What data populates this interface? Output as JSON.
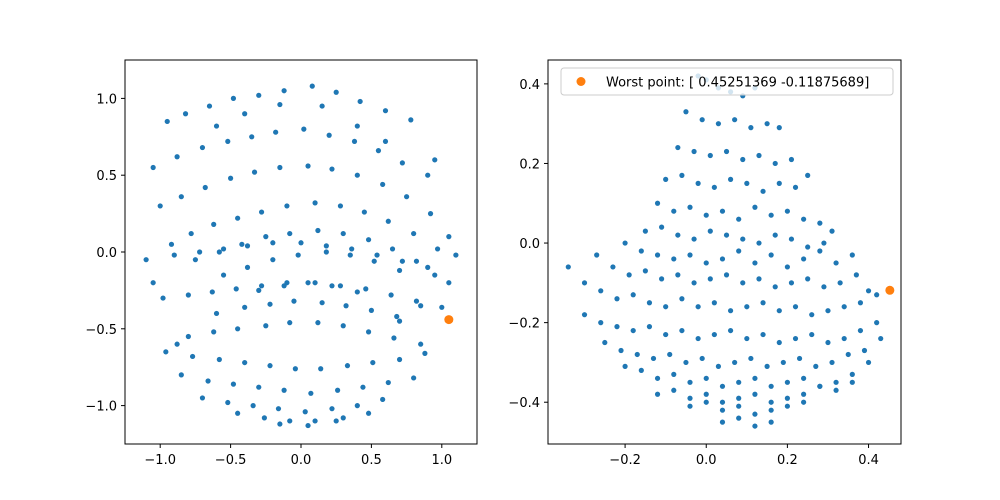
{
  "figure": {
    "background": "#ffffff"
  },
  "chart_data": [
    {
      "type": "scatter",
      "title": "",
      "xlabel": "",
      "ylabel": "",
      "xlim": [
        -1.25,
        1.25
      ],
      "ylim": [
        -1.25,
        1.25
      ],
      "xticks": [
        -1.0,
        -0.5,
        0.0,
        0.5,
        1.0
      ],
      "xtick_labels": [
        "−1.0",
        "−0.5",
        "0.0",
        "0.5",
        "1.0"
      ],
      "yticks": [
        -1.0,
        -0.5,
        0.0,
        0.5,
        1.0
      ],
      "ytick_labels": [
        "−1.0",
        "−0.5",
        "0.0",
        "0.5",
        "1.0"
      ],
      "grid": false,
      "series": [
        {
          "color": "#1f77b4",
          "shape": "small-dot",
          "x": [
            -0.95,
            -0.82,
            -0.65,
            -0.48,
            -0.3,
            -0.12,
            0.08,
            0.25,
            0.42,
            0.6,
            0.78,
            0.95,
            -1.05,
            -0.88,
            -0.7,
            -0.52,
            -0.35,
            -0.18,
            0.02,
            0.2,
            0.38,
            0.55,
            0.72,
            0.9,
            1.05,
            -1.0,
            -0.85,
            -0.68,
            -0.5,
            -0.33,
            -0.15,
            0.05,
            0.22,
            0.4,
            0.58,
            0.75,
            0.92,
            -0.92,
            -0.78,
            -0.62,
            -0.45,
            -0.28,
            -0.1,
            0.1,
            0.28,
            0.45,
            0.62,
            0.8,
            0.97,
            -0.75,
            -0.58,
            -0.42,
            -0.25,
            -0.08,
            0.12,
            0.3,
            0.48,
            0.65,
            0.82,
            -0.55,
            -0.38,
            -0.2,
            -0.02,
            0.18,
            0.35,
            0.52,
            0.7,
            -0.3,
            -0.12,
            0.05,
            0.22,
            0.4,
            -0.6,
            -0.4,
            -0.22,
            -0.05,
            0.15,
            0.32,
            0.5,
            0.68,
            -0.8,
            -0.62,
            -0.45,
            -0.25,
            -0.08,
            0.12,
            0.3,
            0.48,
            0.66,
            0.85,
            -0.98,
            -0.8,
            -0.63,
            -0.46,
            -0.28,
            -0.1,
            0.1,
            0.28,
            0.46,
            0.64,
            0.82,
            1.0,
            -1.1,
            -0.9,
            -0.72,
            -0.55,
            -0.38,
            -0.2,
            0.0,
            0.18,
            0.36,
            0.54,
            0.72,
            0.9,
            1.1,
            -0.96,
            -0.77,
            -0.58,
            -0.4,
            -0.22,
            -0.04,
            0.14,
            0.33,
            0.51,
            0.7,
            0.88,
            -0.85,
            -0.66,
            -0.48,
            -0.3,
            -0.12,
            0.07,
            0.26,
            0.44,
            0.62,
            0.8,
            -0.7,
            -0.52,
            -0.34,
            -0.16,
            0.03,
            0.22,
            0.4,
            0.58,
            -0.45,
            -0.26,
            -0.08,
            0.1,
            0.3,
            0.48,
            -0.15,
            0.05,
            0.25,
            0.95,
            1.05,
            0.85,
            0.7,
            -0.88,
            -1.05,
            0.6,
            -0.6,
            0.4,
            -0.4,
            0.15,
            -0.15
          ],
          "y": [
            0.85,
            0.9,
            0.95,
            1.0,
            1.02,
            1.05,
            1.08,
            1.04,
            0.98,
            0.92,
            0.86,
            0.6,
            0.55,
            0.62,
            0.68,
            0.72,
            0.75,
            0.78,
            0.8,
            0.76,
            0.72,
            0.66,
            0.58,
            0.5,
            0.1,
            0.3,
            0.36,
            0.42,
            0.48,
            0.52,
            0.55,
            0.56,
            0.54,
            0.5,
            0.44,
            0.36,
            0.25,
            0.05,
            0.12,
            0.18,
            0.22,
            0.26,
            0.3,
            0.32,
            0.3,
            0.26,
            0.2,
            0.12,
            0.02,
            -0.05,
            0.0,
            0.05,
            0.1,
            0.12,
            0.14,
            0.12,
            0.08,
            0.02,
            -0.06,
            -0.15,
            -0.1,
            -0.05,
            -0.02,
            0.0,
            -0.02,
            -0.06,
            -0.12,
            -0.25,
            -0.22,
            -0.2,
            -0.22,
            -0.26,
            -0.4,
            -0.36,
            -0.34,
            -0.32,
            -0.33,
            -0.35,
            -0.38,
            -0.42,
            -0.55,
            -0.52,
            -0.5,
            -0.48,
            -0.46,
            -0.46,
            -0.48,
            -0.52,
            -0.56,
            -0.6,
            -0.3,
            -0.28,
            -0.26,
            -0.24,
            -0.22,
            -0.2,
            -0.2,
            -0.22,
            -0.24,
            -0.28,
            -0.32,
            -0.36,
            -0.05,
            -0.02,
            0.0,
            0.02,
            0.04,
            0.06,
            0.06,
            0.04,
            0.02,
            -0.02,
            -0.06,
            -0.1,
            -0.02,
            -0.65,
            -0.68,
            -0.7,
            -0.72,
            -0.74,
            -0.76,
            -0.76,
            -0.74,
            -0.72,
            -0.7,
            -0.66,
            -0.8,
            -0.84,
            -0.86,
            -0.88,
            -0.9,
            -0.92,
            -0.9,
            -0.88,
            -0.85,
            -0.82,
            -0.95,
            -0.98,
            -1.0,
            -1.02,
            -1.04,
            -1.02,
            -1.0,
            -0.96,
            -1.05,
            -1.08,
            -1.1,
            -1.1,
            -1.08,
            -1.05,
            -1.12,
            -1.13,
            -1.1,
            -0.15,
            -0.2,
            -0.35,
            -0.45,
            -0.6,
            -0.2,
            0.72,
            0.82,
            0.82,
            0.9,
            0.95,
            0.96
          ]
        },
        {
          "color": "#ff7f0e",
          "shape": "large-dot",
          "x": [
            1.05
          ],
          "y": [
            -0.44
          ]
        }
      ]
    },
    {
      "type": "scatter",
      "title": "",
      "xlabel": "",
      "ylabel": "",
      "xlim": [
        -0.39,
        0.48
      ],
      "ylim": [
        -0.505,
        0.46
      ],
      "xticks": [
        -0.2,
        0.0,
        0.2,
        0.4
      ],
      "xtick_labels": [
        "−0.2",
        "0.0",
        "0.2",
        "0.4"
      ],
      "yticks": [
        -0.4,
        -0.2,
        0.0,
        0.2,
        0.4
      ],
      "ytick_labels": [
        "−0.4",
        "−0.2",
        "0.0",
        "0.2",
        "0.4"
      ],
      "grid": false,
      "legend": {
        "position": "upper-right",
        "label": "Worst point: [ 0.45251369 -0.11875689]"
      },
      "series": [
        {
          "color": "#1f77b4",
          "shape": "small-dot",
          "x": [
            -0.02,
            0.0,
            0.03,
            0.06,
            0.09,
            0.12,
            -0.05,
            -0.01,
            0.03,
            0.07,
            0.11,
            0.15,
            0.18,
            -0.07,
            -0.03,
            0.01,
            0.05,
            0.09,
            0.13,
            0.17,
            0.21,
            -0.1,
            -0.06,
            -0.02,
            0.02,
            0.06,
            0.1,
            0.14,
            0.18,
            0.22,
            0.25,
            -0.12,
            -0.08,
            -0.04,
            0.0,
            0.04,
            0.08,
            0.12,
            0.16,
            0.2,
            0.24,
            0.28,
            -0.15,
            -0.11,
            -0.07,
            -0.03,
            0.01,
            0.05,
            0.09,
            0.13,
            0.17,
            0.21,
            0.25,
            0.29,
            0.31,
            -0.2,
            -0.16,
            -0.12,
            -0.08,
            -0.04,
            0.0,
            0.04,
            0.08,
            0.12,
            0.16,
            0.2,
            0.24,
            0.28,
            0.32,
            0.36,
            -0.27,
            -0.23,
            -0.19,
            -0.15,
            -0.11,
            -0.07,
            -0.03,
            0.01,
            0.05,
            0.09,
            0.13,
            0.17,
            0.21,
            0.25,
            0.29,
            0.33,
            0.37,
            0.4,
            -0.34,
            -0.3,
            -0.26,
            -0.22,
            -0.18,
            -0.14,
            -0.1,
            -0.06,
            -0.02,
            0.02,
            0.06,
            0.1,
            0.14,
            0.18,
            0.22,
            0.26,
            0.3,
            0.34,
            0.38,
            0.42,
            -0.3,
            -0.26,
            -0.22,
            -0.18,
            -0.14,
            -0.1,
            -0.06,
            -0.02,
            0.02,
            0.06,
            0.1,
            0.14,
            0.18,
            0.22,
            0.26,
            0.3,
            0.34,
            0.38,
            0.42,
            -0.25,
            -0.21,
            -0.17,
            -0.13,
            -0.09,
            -0.05,
            -0.01,
            0.03,
            0.07,
            0.11,
            0.15,
            0.19,
            0.23,
            0.27,
            0.31,
            0.35,
            0.39,
            0.43,
            -0.2,
            -0.16,
            -0.12,
            -0.08,
            -0.04,
            0.0,
            0.04,
            0.08,
            0.12,
            0.16,
            0.2,
            0.24,
            0.28,
            0.32,
            0.36,
            0.4,
            -0.12,
            -0.08,
            -0.04,
            0.0,
            0.04,
            0.08,
            0.12,
            0.16,
            0.2,
            0.24,
            0.28,
            0.32,
            0.36,
            -0.04,
            0.0,
            0.04,
            0.08,
            0.12,
            0.16,
            0.2,
            0.24,
            0.04,
            0.08,
            0.12,
            0.16
          ],
          "y": [
            0.42,
            0.41,
            0.39,
            0.38,
            0.37,
            0.39,
            0.33,
            0.31,
            0.3,
            0.31,
            0.29,
            0.3,
            0.29,
            0.24,
            0.23,
            0.22,
            0.23,
            0.21,
            0.22,
            0.2,
            0.21,
            0.16,
            0.17,
            0.15,
            0.14,
            0.16,
            0.15,
            0.13,
            0.15,
            0.14,
            0.17,
            0.1,
            0.08,
            0.09,
            0.07,
            0.08,
            0.06,
            0.09,
            0.07,
            0.08,
            0.06,
            0.05,
            0.03,
            0.04,
            0.02,
            0.01,
            0.03,
            0.02,
            0.01,
            0.0,
            0.02,
            0.01,
            -0.01,
            0.0,
            0.03,
            0.0,
            -0.02,
            -0.03,
            -0.04,
            -0.03,
            -0.05,
            -0.04,
            -0.02,
            -0.05,
            -0.03,
            -0.06,
            -0.04,
            -0.02,
            -0.05,
            -0.03,
            -0.03,
            -0.06,
            -0.08,
            -0.07,
            -0.09,
            -0.08,
            -0.1,
            -0.09,
            -0.08,
            -0.1,
            -0.09,
            -0.11,
            -0.1,
            -0.09,
            -0.11,
            -0.1,
            -0.08,
            -0.12,
            -0.06,
            -0.1,
            -0.12,
            -0.14,
            -0.13,
            -0.15,
            -0.16,
            -0.14,
            -0.16,
            -0.15,
            -0.17,
            -0.16,
            -0.15,
            -0.17,
            -0.16,
            -0.18,
            -0.17,
            -0.16,
            -0.15,
            -0.13,
            -0.18,
            -0.2,
            -0.21,
            -0.22,
            -0.21,
            -0.23,
            -0.22,
            -0.24,
            -0.23,
            -0.22,
            -0.24,
            -0.23,
            -0.25,
            -0.24,
            -0.23,
            -0.25,
            -0.24,
            -0.22,
            -0.2,
            -0.25,
            -0.27,
            -0.28,
            -0.29,
            -0.28,
            -0.3,
            -0.29,
            -0.31,
            -0.3,
            -0.29,
            -0.31,
            -0.3,
            -0.29,
            -0.31,
            -0.3,
            -0.28,
            -0.27,
            -0.24,
            -0.31,
            -0.32,
            -0.34,
            -0.33,
            -0.35,
            -0.34,
            -0.36,
            -0.35,
            -0.34,
            -0.36,
            -0.35,
            -0.34,
            -0.36,
            -0.35,
            -0.33,
            -0.3,
            -0.38,
            -0.37,
            -0.39,
            -0.38,
            -0.4,
            -0.39,
            -0.38,
            -0.4,
            -0.39,
            -0.38,
            -0.36,
            -0.37,
            -0.35,
            -0.41,
            -0.4,
            -0.42,
            -0.41,
            -0.43,
            -0.42,
            -0.41,
            -0.4,
            -0.45,
            -0.44,
            -0.46,
            -0.45
          ]
        },
        {
          "color": "#ff7f0e",
          "shape": "large-dot",
          "x": [
            0.45251369
          ],
          "y": [
            -0.11875689
          ]
        }
      ]
    }
  ]
}
